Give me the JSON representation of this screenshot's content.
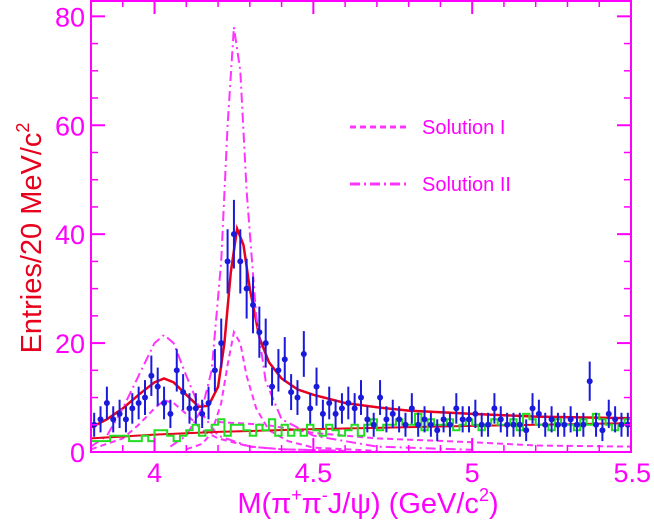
{
  "chart_data": {
    "type": "line",
    "xlabel_parts": {
      "pre": "M(π",
      "sup1": "+",
      "mid": "π",
      "sup2": "-",
      "post": "J/ψ) (GeV/c",
      "sup3": "2",
      "end": ")"
    },
    "ylabel_parts": {
      "pre": "Entries/20 MeV/c",
      "sup": "2"
    },
    "xlim": [
      3.8,
      5.5
    ],
    "ylim": [
      0,
      83
    ],
    "x_ticks": [
      "4",
      "4.5",
      "5",
      "5.5"
    ],
    "y_ticks": [
      "0",
      "20",
      "40",
      "60",
      "80"
    ],
    "colors": {
      "axis": "#ff00ff",
      "ylabel": "#e8001c",
      "data": "#1a1adc",
      "total_fit": "#e8001c",
      "solution_lines": "#ff33ff",
      "sideband": "#22dd22"
    },
    "legend": [
      {
        "label": "Solution I",
        "style": "dashed"
      },
      {
        "label": "Solution II",
        "style": "dash-dot"
      }
    ],
    "legend_placement": "top-right",
    "series": [
      {
        "kind": "data_points",
        "x": [
          3.81,
          3.83,
          3.85,
          3.87,
          3.89,
          3.91,
          3.93,
          3.95,
          3.97,
          3.99,
          4.01,
          4.03,
          4.05,
          4.07,
          4.09,
          4.11,
          4.13,
          4.15,
          4.17,
          4.19,
          4.21,
          4.23,
          4.25,
          4.27,
          4.29,
          4.31,
          4.33,
          4.35,
          4.37,
          4.39,
          4.41,
          4.43,
          4.45,
          4.47,
          4.49,
          4.51,
          4.53,
          4.55,
          4.57,
          4.59,
          4.61,
          4.63,
          4.65,
          4.67,
          4.69,
          4.71,
          4.73,
          4.75,
          4.77,
          4.79,
          4.81,
          4.83,
          4.85,
          4.87,
          4.89,
          4.91,
          4.93,
          4.95,
          4.97,
          4.99,
          5.01,
          5.03,
          5.05,
          5.07,
          5.09,
          5.11,
          5.13,
          5.15,
          5.17,
          5.19,
          5.21,
          5.23,
          5.25,
          5.27,
          5.29,
          5.31,
          5.33,
          5.35,
          5.37,
          5.39,
          5.41,
          5.43,
          5.45,
          5.47,
          5.49
        ],
        "y": [
          5,
          6,
          9,
          6,
          7,
          6,
          8,
          9,
          10,
          14,
          12,
          9,
          7,
          15,
          11,
          8,
          8,
          7,
          9,
          15,
          20,
          35,
          40,
          35,
          30,
          27,
          22,
          20,
          12,
          15,
          17,
          11,
          10,
          18,
          8,
          12,
          7,
          9,
          7,
          8,
          9,
          8,
          10,
          6,
          5,
          10,
          6,
          7,
          6,
          5,
          8,
          5,
          6,
          5,
          4,
          6,
          5,
          8,
          6,
          6,
          7,
          5,
          5,
          8,
          6,
          5,
          5,
          5,
          4,
          8,
          7,
          5,
          6,
          5,
          5,
          6,
          5,
          5,
          13,
          5,
          4,
          7,
          6,
          5,
          5
        ],
        "err": [
          2.2,
          2.4,
          3.0,
          2.4,
          2.6,
          2.4,
          2.8,
          3.0,
          3.2,
          3.7,
          3.5,
          3.0,
          2.6,
          3.9,
          3.3,
          2.8,
          2.8,
          2.6,
          3.0,
          3.9,
          4.5,
          5.9,
          6.3,
          5.9,
          5.5,
          5.2,
          4.7,
          4.5,
          3.5,
          3.9,
          4.1,
          3.3,
          3.2,
          4.2,
          2.8,
          3.5,
          2.6,
          3.0,
          2.6,
          2.8,
          3.0,
          2.8,
          3.2,
          2.4,
          2.2,
          3.2,
          2.4,
          2.6,
          2.4,
          2.2,
          2.8,
          2.2,
          2.4,
          2.2,
          2.0,
          2.4,
          2.2,
          2.8,
          2.4,
          2.4,
          2.6,
          2.2,
          2.2,
          2.8,
          2.4,
          2.2,
          2.2,
          2.2,
          2.0,
          2.8,
          2.6,
          2.2,
          2.4,
          2.2,
          2.2,
          2.4,
          2.2,
          2.2,
          3.6,
          2.2,
          2.0,
          2.6,
          2.4,
          2.2,
          2.2
        ]
      },
      {
        "kind": "total_fit",
        "x": [
          3.8,
          3.85,
          3.9,
          3.95,
          4.0,
          4.03,
          4.06,
          4.1,
          4.14,
          4.17,
          4.2,
          4.22,
          4.24,
          4.26,
          4.28,
          4.3,
          4.33,
          4.36,
          4.4,
          4.45,
          4.5,
          4.6,
          4.7,
          4.8,
          5.0,
          5.2,
          5.5
        ],
        "y": [
          4.5,
          6,
          8,
          10.5,
          12.8,
          13.5,
          12.8,
          10.5,
          8.3,
          8.5,
          12,
          20,
          33,
          41,
          38,
          30,
          21,
          16.5,
          13.5,
          11.5,
          10.5,
          9,
          8.2,
          7.6,
          7,
          6.5,
          6.2
        ]
      },
      {
        "kind": "solution_I_peak1",
        "style": "dashed",
        "x": [
          3.8,
          3.9,
          3.95,
          4.0,
          4.03,
          4.06,
          4.1,
          4.15,
          4.2,
          4.3,
          4.4,
          4.6
        ],
        "y": [
          0.5,
          2.5,
          5,
          8,
          9.5,
          9,
          7,
          4,
          2.5,
          1,
          0.5,
          0.2
        ]
      },
      {
        "kind": "solution_I_peak2",
        "style": "dashed",
        "x": [
          4.1,
          4.15,
          4.18,
          4.21,
          4.23,
          4.25,
          4.27,
          4.29,
          4.32,
          4.36,
          4.42,
          4.5,
          4.7
        ],
        "y": [
          0.5,
          1.5,
          3.5,
          9,
          16,
          22,
          20,
          14,
          8,
          4,
          2,
          0.8,
          0.2
        ]
      },
      {
        "kind": "solution_II_peak1",
        "style": "dash-dot",
        "x": [
          3.8,
          3.85,
          3.9,
          3.95,
          4.0,
          4.03,
          4.06,
          4.1,
          4.15,
          4.2,
          4.3,
          4.4,
          4.6
        ],
        "y": [
          1,
          3,
          8,
          14,
          20,
          21.5,
          20,
          14,
          7,
          3,
          1,
          0.5,
          0.2
        ]
      },
      {
        "kind": "solution_II_peak2",
        "style": "dash-dot",
        "x": [
          4.05,
          4.1,
          4.15,
          4.18,
          4.21,
          4.23,
          4.25,
          4.27,
          4.29,
          4.32,
          4.35,
          4.4,
          4.5,
          4.7,
          5.0
        ],
        "y": [
          1,
          3,
          8,
          15,
          35,
          60,
          78,
          70,
          48,
          25,
          13,
          6,
          3,
          1,
          0.4
        ]
      },
      {
        "kind": "flat_component",
        "style": "dashed",
        "x": [
          4.2,
          4.35,
          4.5,
          4.7,
          5.0,
          5.2,
          5.5
        ],
        "y": [
          5.5,
          5,
          3.5,
          2.5,
          1.8,
          1.2,
          1
        ]
      },
      {
        "kind": "background_fit",
        "x": [
          3.8,
          4.0,
          4.2,
          4.5,
          5.0,
          5.5
        ],
        "y": [
          2.5,
          3.2,
          3.7,
          4.2,
          4.8,
          5.3
        ]
      },
      {
        "kind": "sideband_histogram",
        "x_start": 3.8,
        "bin_width": 0.02,
        "y": [
          2,
          2,
          2,
          3,
          3,
          3,
          2,
          2,
          3,
          2,
          4,
          4,
          3,
          2,
          3,
          4,
          5,
          3,
          4,
          5,
          6,
          3,
          5,
          5,
          4,
          3,
          5,
          4,
          6,
          3,
          5,
          3,
          4,
          3,
          5,
          4,
          3,
          5,
          4,
          3,
          4,
          5,
          3,
          5,
          6,
          4,
          5,
          5,
          6,
          5,
          5,
          7,
          4,
          6,
          5,
          5,
          6,
          4,
          5,
          6,
          5,
          4,
          5,
          6,
          5,
          5,
          6,
          4,
          7,
          6,
          5,
          5,
          4,
          6,
          5,
          5,
          4,
          6,
          5,
          7,
          6,
          5,
          4,
          5,
          6
        ]
      }
    ]
  }
}
